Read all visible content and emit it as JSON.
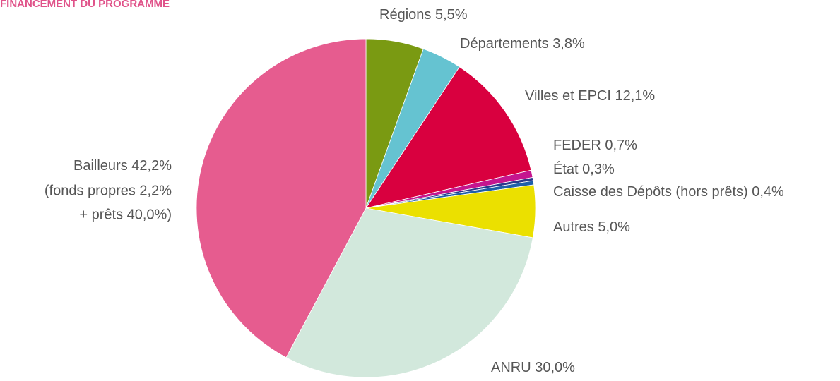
{
  "chart_data": {
    "type": "pie",
    "title": "FINANCEMENT DU PROGRAMME",
    "categories": [
      "Régions",
      "Départements",
      "Villes et EPCI",
      "FEDER",
      "État",
      "Caisse des Dépôts (hors prêts)",
      "Autres",
      "ANRU",
      "Bailleurs"
    ],
    "values": [
      5.5,
      3.8,
      12.1,
      0.7,
      0.3,
      0.4,
      5.0,
      30.0,
      42.2
    ],
    "value_labels": [
      "5,5%",
      "3,8%",
      "12,1%",
      "0,7%",
      "0,3%",
      "0,4%",
      "5,0%",
      "30,0%",
      "42,2%"
    ],
    "colors": [
      "#7a9a12",
      "#65c3d1",
      "#d9003f",
      "#c5168f",
      "#2a3a8c",
      "#1f5fa8",
      "#ebe000",
      "#d2e8dc",
      "#e65c8f"
    ],
    "annotations": [
      "(fonds propres 2,2%",
      "+ prêts 40,0%)"
    ]
  }
}
